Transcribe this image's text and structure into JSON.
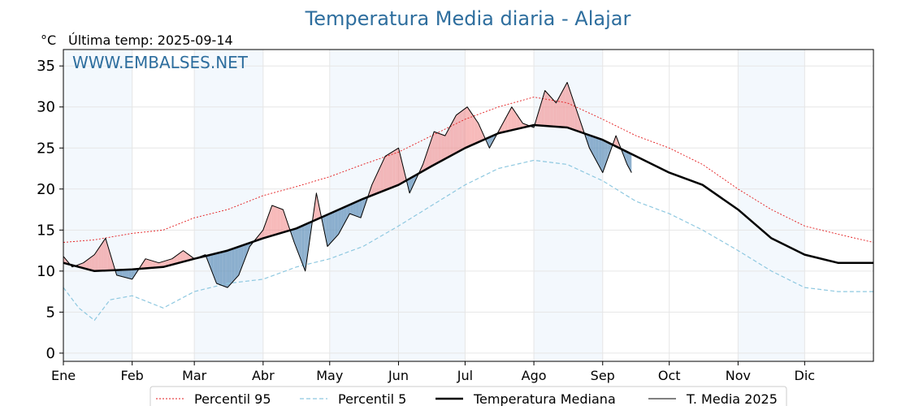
{
  "chart_data": {
    "type": "line",
    "title": "Temperatura Media diaria - Alajar",
    "unit": "°C",
    "last_temp": "Última temp: 2025-09-14",
    "watermark": "WWW.EMBALSES.NET",
    "xlabel": "",
    "ylabel": "",
    "ylim": [
      -1,
      37
    ],
    "xlim": [
      1,
      366
    ],
    "grid": true,
    "y_ticks": [
      0,
      5,
      10,
      15,
      20,
      25,
      30,
      35
    ],
    "x_ticks": [
      {
        "label": "Ene",
        "day": 1
      },
      {
        "label": "Feb",
        "day": 32
      },
      {
        "label": "Mar",
        "day": 60
      },
      {
        "label": "Abr",
        "day": 91
      },
      {
        "label": "May",
        "day": 121
      },
      {
        "label": "Jun",
        "day": 152
      },
      {
        "label": "Jul",
        "day": 182
      },
      {
        "label": "Ago",
        "day": 213
      },
      {
        "label": "Sep",
        "day": 244
      },
      {
        "label": "Oct",
        "day": 274
      },
      {
        "label": "Nov",
        "day": 305
      },
      {
        "label": "Dic",
        "day": 335
      }
    ],
    "shaded_months": [
      {
        "start_day": 1,
        "end_day": 32
      },
      {
        "start_day": 60,
        "end_day": 91
      },
      {
        "start_day": 121,
        "end_day": 182
      },
      {
        "start_day": 213,
        "end_day": 244
      },
      {
        "start_day": 305,
        "end_day": 335
      }
    ],
    "legend_position": "bottom-center",
    "series": [
      {
        "name": "Percentil 95",
        "style": "dotted-red",
        "color": "#e31a1c",
        "points": [
          [
            1,
            13.5
          ],
          [
            15,
            13.8
          ],
          [
            32,
            14.6
          ],
          [
            46,
            15.0
          ],
          [
            60,
            16.5
          ],
          [
            75,
            17.5
          ],
          [
            91,
            19.2
          ],
          [
            106,
            20.3
          ],
          [
            121,
            21.5
          ],
          [
            136,
            23.0
          ],
          [
            152,
            24.5
          ],
          [
            167,
            26.5
          ],
          [
            182,
            28.5
          ],
          [
            197,
            30.0
          ],
          [
            213,
            31.2
          ],
          [
            228,
            30.5
          ],
          [
            244,
            28.5
          ],
          [
            259,
            26.5
          ],
          [
            274,
            25.0
          ],
          [
            289,
            23.0
          ],
          [
            305,
            20.0
          ],
          [
            320,
            17.5
          ],
          [
            335,
            15.5
          ],
          [
            350,
            14.5
          ],
          [
            366,
            13.5
          ]
        ]
      },
      {
        "name": "Percentil 5",
        "style": "dashed-lightblue",
        "color": "#8ec8e0",
        "points": [
          [
            1,
            8.0
          ],
          [
            8,
            5.5
          ],
          [
            15,
            4.0
          ],
          [
            22,
            6.5
          ],
          [
            32,
            7.0
          ],
          [
            46,
            5.5
          ],
          [
            60,
            7.5
          ],
          [
            75,
            8.5
          ],
          [
            91,
            9.0
          ],
          [
            106,
            10.5
          ],
          [
            121,
            11.5
          ],
          [
            136,
            13.0
          ],
          [
            152,
            15.5
          ],
          [
            167,
            18.0
          ],
          [
            182,
            20.5
          ],
          [
            197,
            22.5
          ],
          [
            213,
            23.5
          ],
          [
            228,
            23.0
          ],
          [
            244,
            21.0
          ],
          [
            259,
            18.5
          ],
          [
            274,
            17.0
          ],
          [
            289,
            15.0
          ],
          [
            305,
            12.5
          ],
          [
            320,
            10.0
          ],
          [
            335,
            8.0
          ],
          [
            350,
            7.5
          ],
          [
            366,
            7.5
          ]
        ]
      },
      {
        "name": "Temperatura Mediana",
        "style": "thick-black",
        "color": "#000000",
        "points": [
          [
            1,
            11.0
          ],
          [
            15,
            10.0
          ],
          [
            32,
            10.2
          ],
          [
            46,
            10.5
          ],
          [
            60,
            11.5
          ],
          [
            75,
            12.5
          ],
          [
            91,
            14.0
          ],
          [
            106,
            15.2
          ],
          [
            121,
            17.0
          ],
          [
            136,
            18.8
          ],
          [
            152,
            20.5
          ],
          [
            167,
            22.8
          ],
          [
            182,
            25.0
          ],
          [
            197,
            26.8
          ],
          [
            213,
            27.8
          ],
          [
            228,
            27.5
          ],
          [
            244,
            26.0
          ],
          [
            259,
            24.0
          ],
          [
            274,
            22.0
          ],
          [
            289,
            20.5
          ],
          [
            305,
            17.5
          ],
          [
            320,
            14.0
          ],
          [
            335,
            12.0
          ],
          [
            350,
            11.0
          ],
          [
            366,
            11.0
          ]
        ]
      },
      {
        "name": "T. Media 2025",
        "style": "thin-black",
        "color": "#000000",
        "above_fill": "#f08080",
        "below_fill": "#5b8db8",
        "points": [
          [
            1,
            11.8
          ],
          [
            5,
            10.5
          ],
          [
            10,
            11.0
          ],
          [
            15,
            12.0
          ],
          [
            20,
            14.0
          ],
          [
            25,
            9.5
          ],
          [
            32,
            9.0
          ],
          [
            38,
            11.5
          ],
          [
            44,
            11.0
          ],
          [
            50,
            11.5
          ],
          [
            55,
            12.5
          ],
          [
            60,
            11.5
          ],
          [
            65,
            12.0
          ],
          [
            70,
            8.5
          ],
          [
            75,
            8.0
          ],
          [
            80,
            9.5
          ],
          [
            85,
            13.0
          ],
          [
            91,
            15.0
          ],
          [
            95,
            18.0
          ],
          [
            100,
            17.5
          ],
          [
            105,
            13.5
          ],
          [
            110,
            10.0
          ],
          [
            115,
            19.5
          ],
          [
            120,
            13.0
          ],
          [
            125,
            14.5
          ],
          [
            130,
            17.0
          ],
          [
            135,
            16.5
          ],
          [
            140,
            20.5
          ],
          [
            146,
            24.0
          ],
          [
            152,
            25.0
          ],
          [
            157,
            19.5
          ],
          [
            163,
            23.0
          ],
          [
            168,
            27.0
          ],
          [
            173,
            26.5
          ],
          [
            178,
            29.0
          ],
          [
            183,
            30.0
          ],
          [
            188,
            28.0
          ],
          [
            193,
            25.0
          ],
          [
            198,
            27.5
          ],
          [
            203,
            30.0
          ],
          [
            208,
            28.0
          ],
          [
            213,
            27.5
          ],
          [
            218,
            32.0
          ],
          [
            223,
            30.5
          ],
          [
            228,
            33.0
          ],
          [
            233,
            29.0
          ],
          [
            238,
            25.0
          ],
          [
            244,
            22.0
          ],
          [
            250,
            26.5
          ],
          [
            255,
            23.0
          ],
          [
            257,
            22.0
          ]
        ]
      }
    ]
  }
}
